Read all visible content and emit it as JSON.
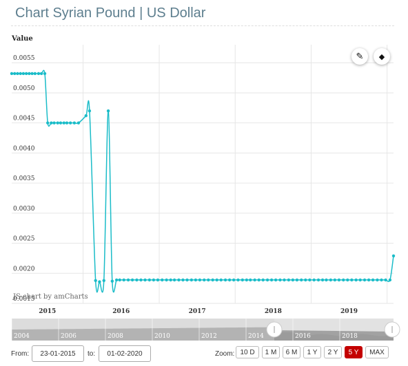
{
  "header": {
    "title": "Chart Syrian Pound | US Dollar"
  },
  "chart_data": {
    "type": "line",
    "ylabel": "Value",
    "ylim": [
      0.0015,
      0.0058
    ],
    "yticks": [
      "0.0015",
      "0.0020",
      "0.0025",
      "0.0030",
      "0.0035",
      "0.0040",
      "0.0045",
      "0.0050",
      "0.0055"
    ],
    "xticks": [
      "2015",
      "2016",
      "2017",
      "2018",
      "2019"
    ],
    "grid": true,
    "series": [
      {
        "color": "#1abcc8",
        "x": [
          "2015-01-23",
          "2015-02-06",
          "2015-02-20",
          "2015-03-06",
          "2015-03-20",
          "2015-04-03",
          "2015-04-17",
          "2015-05-01",
          "2015-05-15",
          "2015-06-01",
          "2015-06-15",
          "2015-07-01",
          "2015-07-15",
          "2015-08-01",
          "2015-08-15",
          "2015-09-01",
          "2015-09-15",
          "2015-10-01",
          "2015-10-15",
          "2015-11-01",
          "2015-11-20",
          "2015-12-10",
          "2016-01-15",
          "2016-02-01",
          "2016-03-01",
          "2016-03-20",
          "2016-04-10",
          "2016-05-01",
          "2016-05-20",
          "2016-06-10",
          "2016-06-25",
          "2016-07-15",
          "2016-08-05",
          "2016-08-25",
          "2016-09-15",
          "2016-10-05",
          "2016-10-25",
          "2016-11-15",
          "2016-12-05",
          "2016-12-25",
          "2017-01-15",
          "2017-02-05",
          "2017-02-25",
          "2017-03-15",
          "2017-04-05",
          "2017-04-25",
          "2017-05-15",
          "2017-06-05",
          "2017-06-25",
          "2017-07-15",
          "2017-08-05",
          "2017-08-25",
          "2017-09-15",
          "2017-10-05",
          "2017-10-25",
          "2017-11-15",
          "2017-12-05",
          "2017-12-25",
          "2018-01-15",
          "2018-02-05",
          "2018-02-25",
          "2018-03-15",
          "2018-04-05",
          "2018-04-25",
          "2018-05-15",
          "2018-06-05",
          "2018-06-25",
          "2018-07-15",
          "2018-08-05",
          "2018-08-25",
          "2018-09-15",
          "2018-10-05",
          "2018-10-25",
          "2018-11-15",
          "2018-12-05",
          "2018-12-25",
          "2019-01-15",
          "2019-02-05",
          "2019-02-25",
          "2019-03-15",
          "2019-04-05",
          "2019-04-25",
          "2019-05-15",
          "2019-06-05",
          "2019-06-25",
          "2019-07-15",
          "2019-08-05",
          "2019-08-25",
          "2019-09-15",
          "2019-10-05",
          "2019-10-25",
          "2019-11-15",
          "2019-12-05",
          "2019-12-25",
          "2020-01-15",
          "2020-02-01"
        ],
        "y": [
          0.00532,
          0.00532,
          0.00532,
          0.00532,
          0.00532,
          0.00532,
          0.00532,
          0.00532,
          0.00532,
          0.00532,
          0.00532,
          0.00532,
          0.0045,
          0.0045,
          0.0045,
          0.0045,
          0.0045,
          0.0045,
          0.0045,
          0.0045,
          0.0045,
          0.0045,
          0.00462,
          0.0047,
          0.00188,
          0.00186,
          0.00188,
          0.0047,
          0.00187,
          0.00189,
          0.00189,
          0.00189,
          0.00189,
          0.00189,
          0.00189,
          0.00189,
          0.00189,
          0.00189,
          0.00189,
          0.00189,
          0.00189,
          0.00189,
          0.00189,
          0.00189,
          0.00189,
          0.00189,
          0.00189,
          0.00189,
          0.00189,
          0.00189,
          0.00189,
          0.00189,
          0.00189,
          0.00189,
          0.00189,
          0.00189,
          0.00189,
          0.00189,
          0.00189,
          0.00189,
          0.00189,
          0.00189,
          0.00189,
          0.00189,
          0.00189,
          0.00189,
          0.00189,
          0.00189,
          0.00189,
          0.00189,
          0.00189,
          0.00189,
          0.00189,
          0.00189,
          0.00189,
          0.00189,
          0.00189,
          0.00189,
          0.00189,
          0.00189,
          0.00189,
          0.00189,
          0.00189,
          0.00189,
          0.00189,
          0.00189,
          0.00189,
          0.00189,
          0.00189,
          0.00189,
          0.00189,
          0.00189,
          0.00189,
          0.00189,
          0.00189,
          0.00229
        ]
      }
    ],
    "navigator": {
      "labels": [
        "2004",
        "2006",
        "2008",
        "2010",
        "2012",
        "2014",
        "2016",
        "2018"
      ],
      "selected_range": [
        "2015",
        "2020"
      ]
    }
  },
  "credit": "JS chart by amCharts",
  "range": {
    "from_label": "From:",
    "from_value": "23-01-2015",
    "to_label": "to:",
    "to_value": "01-02-2020"
  },
  "zoom": {
    "label": "Zoom:",
    "buttons": [
      "10 D",
      "1 M",
      "6 M",
      "1 Y",
      "2 Y",
      "5 Y",
      "MAX"
    ],
    "active": "5 Y"
  },
  "tools": {
    "pencil_icon": "pencil-icon",
    "eraser_icon": "eraser-icon",
    "pencil_glyph": "✎",
    "eraser_glyph": "◆"
  }
}
